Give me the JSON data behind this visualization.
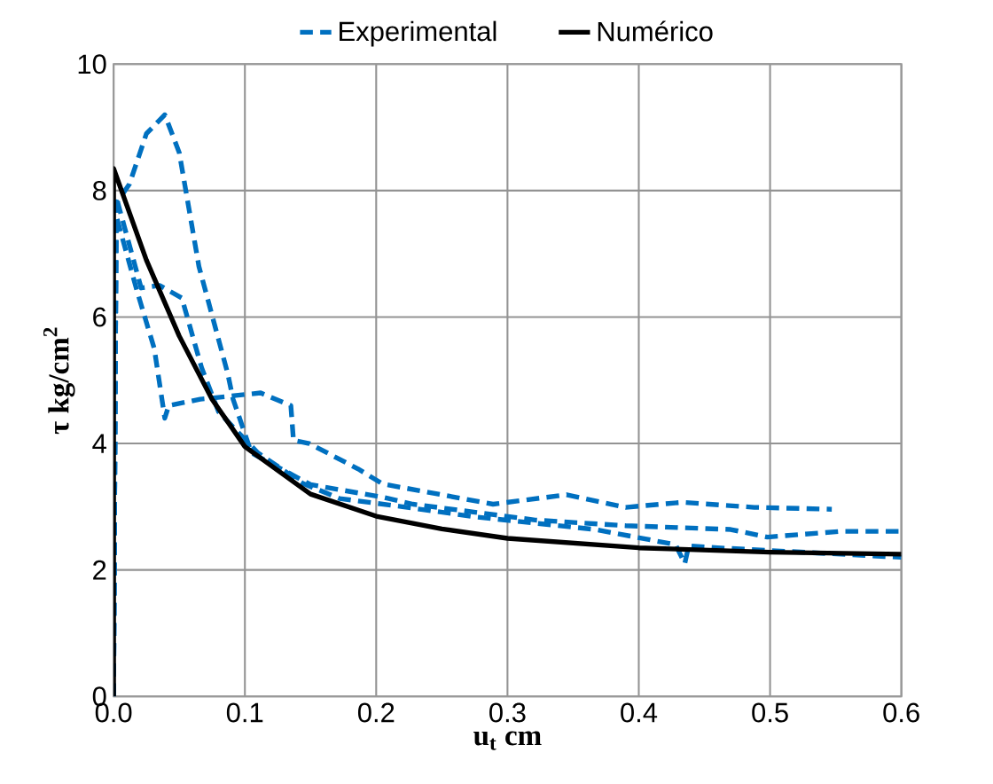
{
  "chart_data": {
    "type": "line",
    "xlabel": "u$_{t}$ cm",
    "ylabel": "τ kg/cm$^{2}$",
    "xlim": [
      0,
      0.6
    ],
    "ylim": [
      0,
      10
    ],
    "xticks": [
      {
        "value": 0,
        "label": "0.0"
      },
      0.1,
      0.2,
      0.3,
      0.4,
      0.5,
      0.6
    ],
    "yticks": [
      0,
      2,
      4,
      6,
      8,
      10
    ],
    "grid": true,
    "legend": "top",
    "marker": "none",
    "series": [
      {
        "name": "Experimental",
        "color": "#0070c0",
        "line_style": "dashed",
        "x": [
          0,
          0.002,
          0.012,
          0.025,
          0.039,
          0.05,
          0.065,
          0.087,
          0.091,
          0.105,
          0.15,
          0.205,
          0.228,
          0.321,
          0.39,
          0.47,
          0.498,
          0.554,
          0.6
        ],
        "values": [
          0,
          7.8,
          8.1,
          8.9,
          9.2,
          8.6,
          6.8,
          5.1,
          4.7,
          3.85,
          3.35,
          3.15,
          3.04,
          2.79,
          2.7,
          2.64,
          2.52,
          2.61,
          2.61
        ]
      },
      {
        "color": "#0070c0",
        "line_style": "dashed",
        "x": [
          0,
          0.002,
          0.021,
          0.035,
          0.052,
          0.067,
          0.08,
          0.11,
          0.144,
          0.172,
          0.22,
          0.275,
          0.367,
          0.428,
          0.435,
          0.438,
          0.46,
          0.6
        ],
        "values": [
          0,
          7.9,
          6.46,
          6.5,
          6.3,
          5.2,
          4.5,
          3.85,
          3.37,
          3.13,
          3.0,
          2.84,
          2.64,
          2.4,
          2.1,
          2.38,
          2.35,
          2.2
        ]
      },
      {
        "color": "#0070c0",
        "line_style": "dashed",
        "x": [
          0,
          0.002,
          0.018,
          0.031,
          0.039,
          0.042,
          0.066,
          0.112,
          0.135,
          0.137,
          0.149,
          0.186,
          0.205,
          0.289,
          0.345,
          0.39,
          0.433,
          0.488,
          0.547
        ],
        "values": [
          0,
          7.6,
          6.4,
          5.5,
          4.4,
          4.6,
          4.7,
          4.8,
          4.6,
          4.05,
          4.0,
          3.6,
          3.36,
          3.04,
          3.19,
          2.99,
          3.07,
          2.99,
          2.96
        ]
      },
      {
        "name": "Numérico",
        "color": "#000000",
        "line_style": "solid",
        "x": [
          0,
          0,
          0.025,
          0.05,
          0.075,
          0.1,
          0.15,
          0.2,
          0.25,
          0.3,
          0.4,
          0.5,
          0.6
        ],
        "values": [
          0,
          8.35,
          6.9,
          5.7,
          4.7,
          3.95,
          3.2,
          2.85,
          2.65,
          2.5,
          2.35,
          2.28,
          2.25
        ]
      }
    ]
  }
}
